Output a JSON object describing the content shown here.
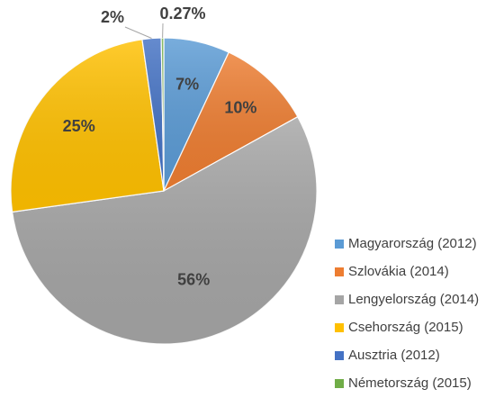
{
  "chart_data": {
    "type": "pie",
    "categories": [
      "Magyarország (2012)",
      "Szlovákia (2014)",
      "Lengyelország (2014)",
      "Csehország (2015)",
      "Ausztria (2012)",
      "Németország (2015)"
    ],
    "values": [
      7,
      10,
      56,
      25,
      2,
      0.27
    ],
    "data_labels": [
      "7%",
      "10%",
      "56%",
      "25%",
      "2%",
      "0.27%"
    ],
    "colors": [
      "#5B9BD5",
      "#ED7D31",
      "#A5A5A5",
      "#FFC000",
      "#4472C4",
      "#70AD47"
    ],
    "legend_position": "bottom-right",
    "title": ""
  }
}
